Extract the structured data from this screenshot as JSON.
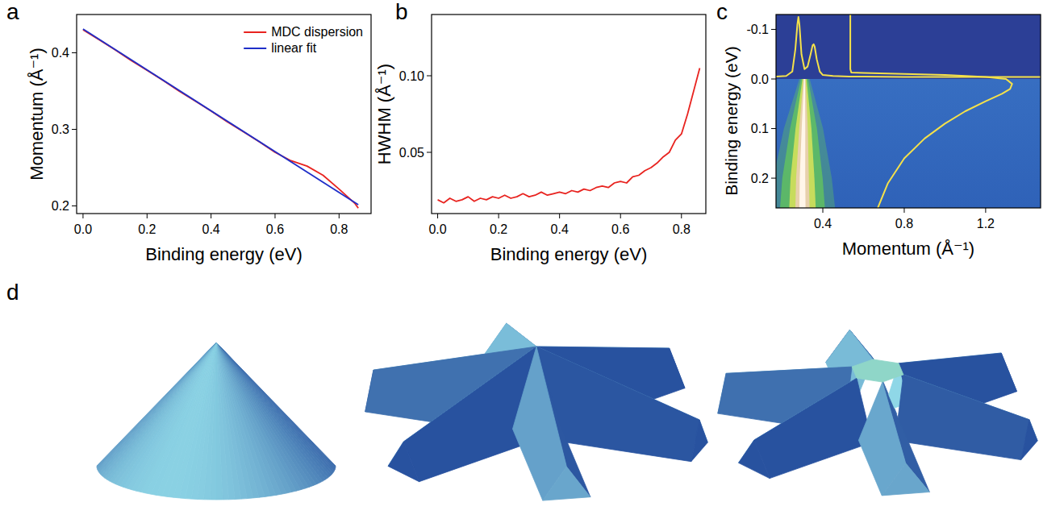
{
  "chart_data": [
    {
      "type": "line",
      "label": "a",
      "x_label": "Binding energy (eV)",
      "y_label": "Momentum (Å⁻¹)",
      "xlim": [
        -0.02,
        0.9
      ],
      "ylim": [
        0.19,
        0.45
      ],
      "xticks": [
        {
          "value": 0,
          "label": "0.0"
        },
        0.2,
        0.4,
        0.6,
        0.8
      ],
      "yticks": [
        0.2,
        0.3,
        0.4
      ],
      "legend": "top-right",
      "series": [
        {
          "name": "MDC dispersion",
          "color": "#e8231f",
          "x": [
            0,
            0.05,
            0.1,
            0.15,
            0.2,
            0.25,
            0.3,
            0.35,
            0.4,
            0.45,
            0.5,
            0.55,
            0.6,
            0.65,
            0.7,
            0.75,
            0.8,
            0.85,
            0.86
          ],
          "values": [
            0.43,
            0.417,
            0.404,
            0.39,
            0.377,
            0.364,
            0.35,
            0.337,
            0.324,
            0.31,
            0.297,
            0.284,
            0.27,
            0.259,
            0.252,
            0.24,
            0.222,
            0.203,
            0.197
          ]
        },
        {
          "name": "linear fit",
          "color": "#1f2ec8",
          "x": [
            0,
            0.86
          ],
          "values": [
            0.431,
            0.2015
          ]
        }
      ]
    },
    {
      "type": "line",
      "label": "b",
      "x_label": "Binding energy (eV)",
      "y_label": "HWHM (Å⁻¹)",
      "xlim": [
        -0.02,
        0.88
      ],
      "ylim": [
        0.01,
        0.14
      ],
      "xticks": [
        {
          "value": 0,
          "label": "0.0"
        },
        0.2,
        0.4,
        0.6,
        0.8
      ],
      "yticks": [
        0.05,
        {
          "value": 0.1,
          "label": "0.10"
        }
      ],
      "series": [
        {
          "color": "#e8231f",
          "x": [
            0,
            0.02,
            0.04,
            0.06,
            0.08,
            0.1,
            0.12,
            0.14,
            0.16,
            0.18,
            0.2,
            0.22,
            0.24,
            0.26,
            0.28,
            0.3,
            0.32,
            0.34,
            0.36,
            0.38,
            0.4,
            0.42,
            0.44,
            0.46,
            0.48,
            0.5,
            0.52,
            0.54,
            0.56,
            0.58,
            0.6,
            0.62,
            0.64,
            0.66,
            0.68,
            0.7,
            0.72,
            0.74,
            0.76,
            0.78,
            0.8,
            0.82,
            0.84,
            0.86
          ],
          "values": [
            0.019,
            0.017,
            0.02,
            0.018,
            0.019,
            0.021,
            0.018,
            0.02,
            0.019,
            0.021,
            0.02,
            0.022,
            0.02,
            0.021,
            0.023,
            0.021,
            0.022,
            0.024,
            0.022,
            0.023,
            0.024,
            0.023,
            0.025,
            0.024,
            0.026,
            0.025,
            0.027,
            0.028,
            0.027,
            0.03,
            0.031,
            0.03,
            0.034,
            0.035,
            0.038,
            0.04,
            0.043,
            0.047,
            0.05,
            0.058,
            0.062,
            0.075,
            0.09,
            0.105
          ]
        }
      ]
    },
    {
      "type": "image",
      "label": "c",
      "x_label": "Momentum (Å⁻¹)",
      "y_label": "Binding energy (eV)",
      "xlim": [
        0.17,
        1.47
      ],
      "ylim": [
        0.26,
        -0.13
      ],
      "xticks": [
        0.4,
        0.8,
        1.2
      ],
      "yticks": [
        -0.1,
        {
          "value": 0,
          "label": "0.0"
        },
        0.1,
        0.2
      ],
      "series": [
        {
          "type": "line",
          "color": "#f5e14a",
          "x": [
            0.17,
            0.22,
            0.25,
            0.265,
            0.275,
            0.28,
            0.285,
            0.295,
            0.31,
            0.325,
            0.34,
            0.35,
            0.355,
            0.36,
            0.37,
            0.385,
            0.4,
            0.45,
            0.53,
            0.6,
            0.8,
            1.0,
            1.2,
            1.47
          ],
          "values": [
            -0.005,
            -0.006,
            -0.015,
            -0.06,
            -0.11,
            -0.125,
            -0.11,
            -0.05,
            -0.02,
            -0.025,
            -0.05,
            -0.068,
            -0.07,
            -0.065,
            -0.04,
            -0.015,
            -0.008,
            -0.006,
            -0.005,
            -0.005,
            -0.004,
            -0.004,
            -0.004,
            -0.004
          ]
        },
        {
          "type": "line",
          "color": "#f5e14a",
          "x": [
            0.535,
            0.535,
            0.54,
            0.6,
            0.8,
            1.0,
            1.2,
            1.3,
            1.33,
            1.32,
            1.28,
            1.2,
            1.1,
            1.0,
            0.9,
            0.8,
            0.72,
            0.67
          ],
          "values": [
            -0.13,
            -0.02,
            -0.013,
            -0.012,
            -0.01,
            -0.008,
            -0.004,
            0,
            0.01,
            0.02,
            0.03,
            0.045,
            0.065,
            0.09,
            0.12,
            0.16,
            0.21,
            0.26
          ]
        },
        {
          "type": "band",
          "color": "#66cc55",
          "x": [
            0.31,
            0.305,
            0.3,
            0.3
          ],
          "values": [
            0,
            0.1,
            0.2,
            0.26
          ],
          "width": [
            0.008,
            0.03,
            0.045,
            0.05
          ]
        }
      ]
    }
  ],
  "panel_d": {
    "label": "d"
  }
}
